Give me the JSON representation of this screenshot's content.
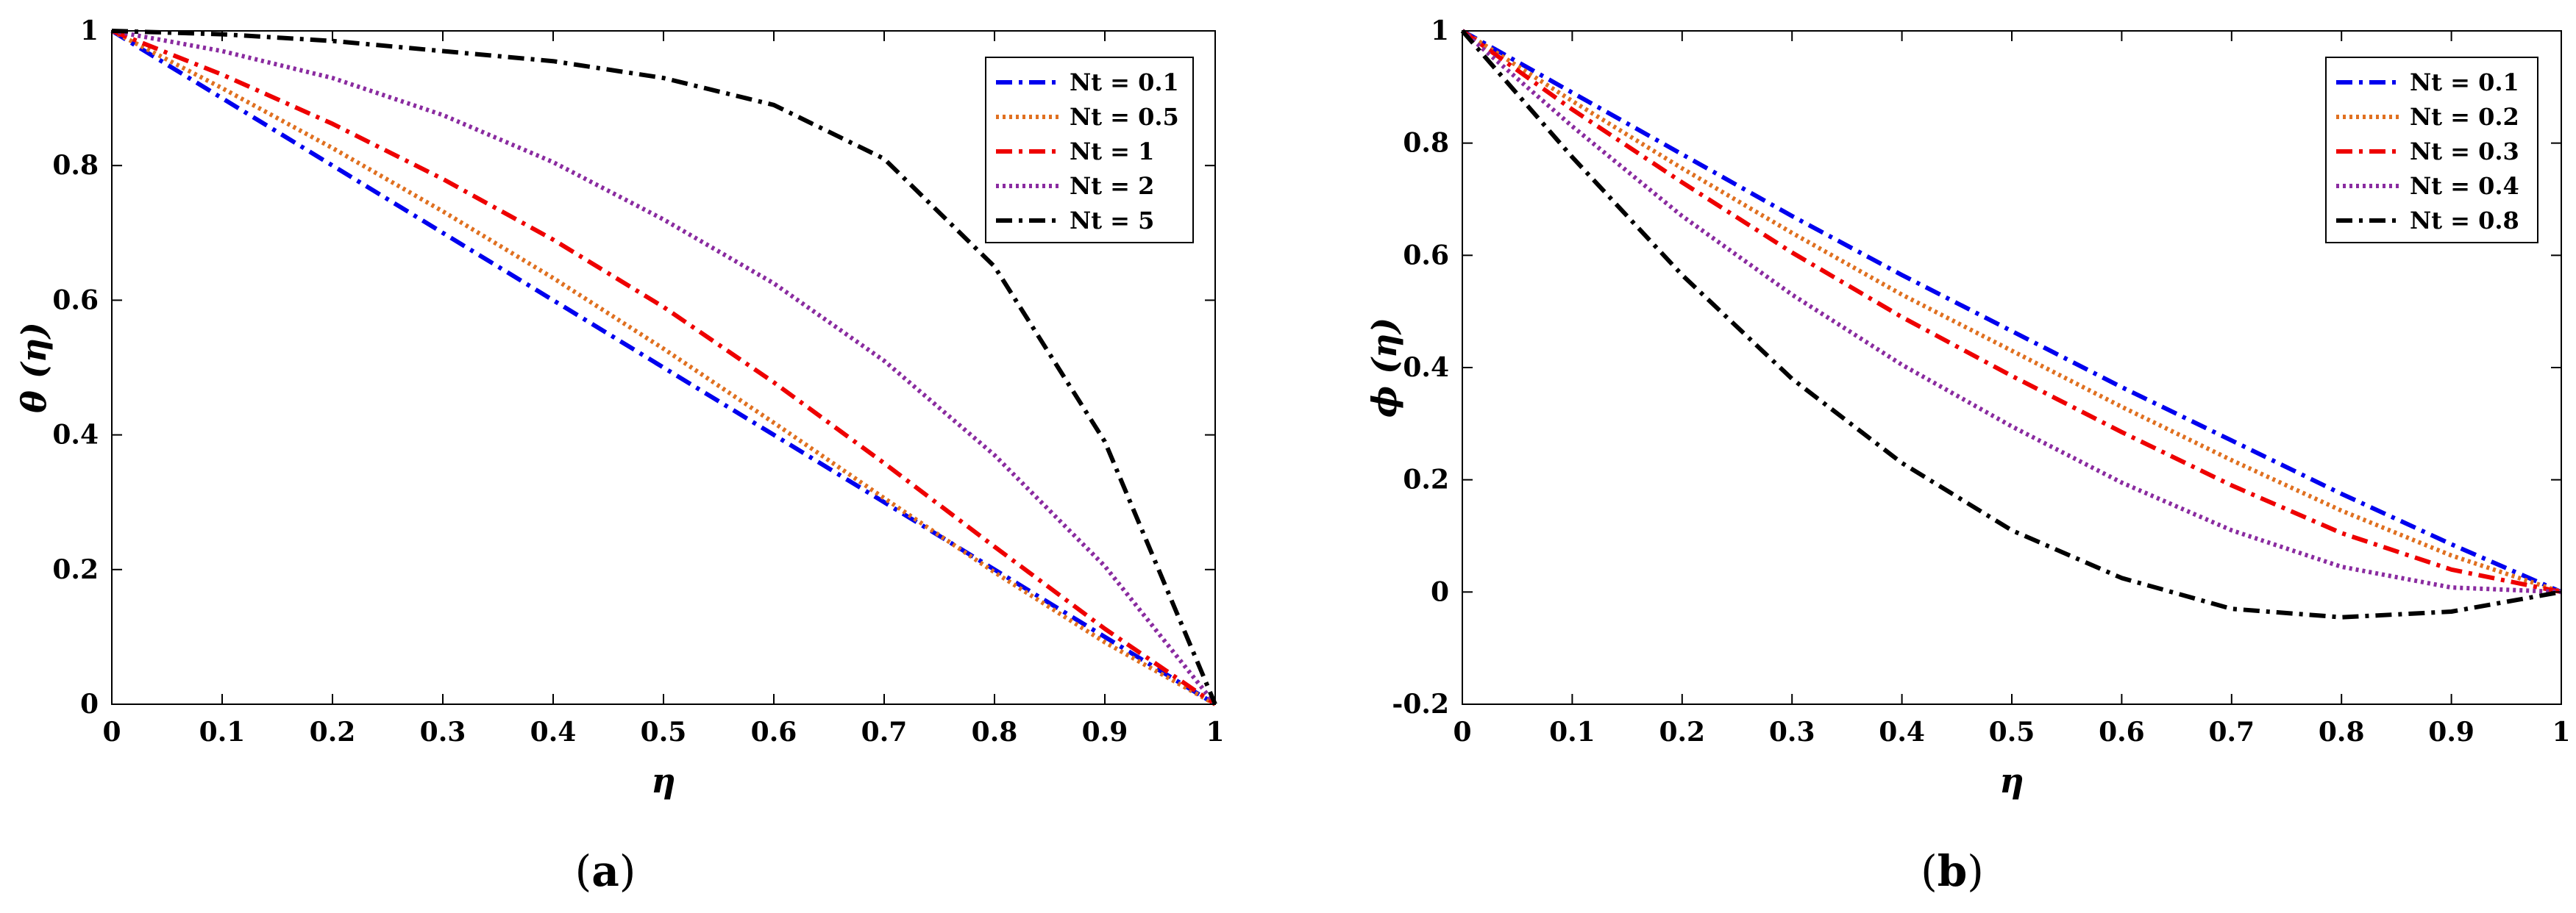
{
  "chart_data": [
    {
      "type": "line",
      "panel_caption": {
        "open": "(",
        "letter": "a",
        "close": ")"
      },
      "xlabel": "η",
      "ylabel": "θ (η)",
      "xlim": [
        0,
        1
      ],
      "ylim": [
        0,
        1
      ],
      "xticks": [
        0,
        0.1,
        0.2,
        0.3,
        0.4,
        0.5,
        0.6,
        0.7,
        0.8,
        0.9,
        1
      ],
      "xtick_labels": [
        "0",
        "0.1",
        "0.2",
        "0.3",
        "0.4",
        "0.5",
        "0.6",
        "0.7",
        "0.8",
        "0.9",
        "1"
      ],
      "yticks": [
        0,
        0.2,
        0.4,
        0.6,
        0.8,
        1
      ],
      "ytick_labels": [
        "0",
        "0.2",
        "0.4",
        "0.6",
        "0.8",
        "1"
      ],
      "legend_position": "top-right",
      "x": [
        0,
        0.1,
        0.2,
        0.3,
        0.4,
        0.5,
        0.6,
        0.7,
        0.8,
        0.9,
        1
      ],
      "series": [
        {
          "name": "Nt = 0.1",
          "color": "#0000ee",
          "dash": "dashdot",
          "values": [
            1,
            0.9,
            0.8,
            0.7,
            0.6,
            0.5,
            0.4,
            0.3,
            0.2,
            0.1,
            0
          ]
        },
        {
          "name": "Nt = 0.5",
          "color": "#e07020",
          "dash": "dotted",
          "values": [
            1,
            0.915,
            0.826,
            0.732,
            0.633,
            0.528,
            0.418,
            0.306,
            0.196,
            0.092,
            0
          ]
        },
        {
          "name": "Nt = 1",
          "color": "#ee0000",
          "dash": "dashdot",
          "values": [
            1,
            0.935,
            0.862,
            0.78,
            0.69,
            0.59,
            0.478,
            0.358,
            0.234,
            0.112,
            0
          ]
        },
        {
          "name": "Nt = 2",
          "color": "#8a2ba0",
          "dash": "dotted",
          "values": [
            1,
            0.97,
            0.93,
            0.875,
            0.805,
            0.72,
            0.625,
            0.51,
            0.37,
            0.205,
            0
          ]
        },
        {
          "name": "Nt = 5",
          "color": "#000000",
          "dash": "dashdot",
          "values": [
            1,
            0.995,
            0.985,
            0.97,
            0.955,
            0.93,
            0.89,
            0.81,
            0.65,
            0.39,
            0
          ]
        }
      ]
    },
    {
      "type": "line",
      "panel_caption": {
        "open": "(",
        "letter": "b",
        "close": ")"
      },
      "xlabel": "η",
      "ylabel": "ϕ (η)",
      "xlim": [
        0,
        1
      ],
      "ylim": [
        -0.2,
        1
      ],
      "xticks": [
        0,
        0.1,
        0.2,
        0.3,
        0.4,
        0.5,
        0.6,
        0.7,
        0.8,
        0.9,
        1
      ],
      "xtick_labels": [
        "0",
        "0.1",
        "0.2",
        "0.3",
        "0.4",
        "0.5",
        "0.6",
        "0.7",
        "0.8",
        "0.9",
        "1"
      ],
      "yticks": [
        -0.2,
        0,
        0.2,
        0.4,
        0.6,
        0.8,
        1
      ],
      "ytick_labels": [
        "-0.2",
        "0",
        "0.2",
        "0.4",
        "0.6",
        "0.8",
        "1"
      ],
      "legend_position": "top-right",
      "x": [
        0,
        0.1,
        0.2,
        0.3,
        0.4,
        0.5,
        0.6,
        0.7,
        0.8,
        0.9,
        1
      ],
      "series": [
        {
          "name": "Nt = 0.1",
          "color": "#0000ee",
          "dash": "dashdot",
          "values": [
            1,
            0.89,
            0.78,
            0.67,
            0.565,
            0.465,
            0.365,
            0.27,
            0.175,
            0.085,
            0
          ]
        },
        {
          "name": "Nt = 0.2",
          "color": "#e07020",
          "dash": "dotted",
          "values": [
            1,
            0.875,
            0.755,
            0.64,
            0.53,
            0.43,
            0.33,
            0.235,
            0.145,
            0.065,
            0
          ]
        },
        {
          "name": "Nt = 0.3",
          "color": "#ee0000",
          "dash": "dashdot",
          "values": [
            1,
            0.86,
            0.73,
            0.605,
            0.49,
            0.385,
            0.285,
            0.19,
            0.105,
            0.04,
            0
          ]
        },
        {
          "name": "Nt = 0.4",
          "color": "#8a2ba0",
          "dash": "dotted",
          "values": [
            1,
            0.83,
            0.67,
            0.53,
            0.405,
            0.295,
            0.195,
            0.11,
            0.045,
            0.008,
            0
          ]
        },
        {
          "name": "Nt = 0.8",
          "color": "#000000",
          "dash": "dashdot",
          "values": [
            1,
            0.775,
            0.565,
            0.38,
            0.23,
            0.11,
            0.025,
            -0.03,
            -0.045,
            -0.035,
            0
          ]
        }
      ]
    }
  ]
}
